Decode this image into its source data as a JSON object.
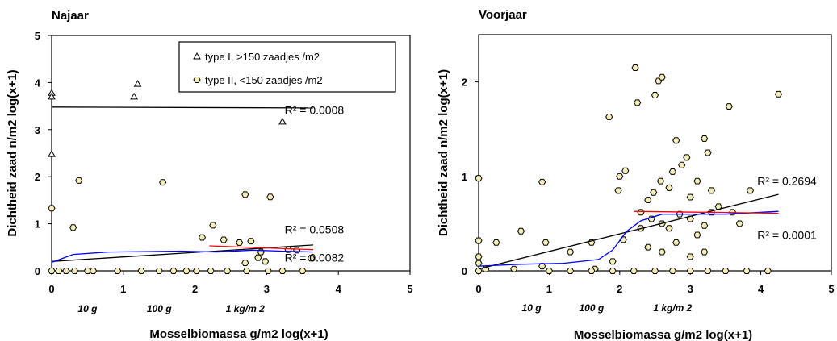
{
  "chart_data": [
    {
      "type": "scatter",
      "title": "Najaar",
      "xlabel": "Mosselbiomassa g/m2 log(x+1)",
      "ylabel": "Dichtheid zaad n/m2 log(x+1)",
      "xlim": [
        0,
        5
      ],
      "ylim": [
        0,
        5
      ],
      "x_ticks": [
        "0",
        "1",
        "2",
        "3",
        "4",
        "5"
      ],
      "y_ticks": [
        "0",
        "1",
        "2",
        "3",
        "4",
        "5"
      ],
      "mass_labels": [
        "10 g",
        "100 g",
        "1 kg/m 2"
      ],
      "legend_position": "top-right",
      "legend": [
        {
          "marker": "triangle",
          "text": "type I, >150 zaadjes /m2"
        },
        {
          "marker": "hexagon",
          "text": "type II, <150 zaadjes /m2"
        }
      ],
      "series": [
        {
          "name": "type I, >150 zaadjes /m2",
          "marker": "triangle",
          "points": [
            [
              0.0,
              3.78
            ],
            [
              0.0,
              3.7
            ],
            [
              0.0,
              2.48
            ],
            [
              1.15,
              3.7
            ],
            [
              1.2,
              3.97
            ],
            [
              3.22,
              3.17
            ]
          ]
        },
        {
          "name": "type II, <150 zaadjes /m2",
          "marker": "hexagon",
          "points": [
            [
              0.0,
              1.33
            ],
            [
              0.38,
              1.92
            ],
            [
              0.3,
              0.92
            ],
            [
              1.55,
              1.88
            ],
            [
              2.7,
              1.62
            ],
            [
              3.05,
              1.57
            ],
            [
              2.25,
              0.97
            ],
            [
              2.1,
              0.71
            ],
            [
              2.4,
              0.66
            ],
            [
              2.62,
              0.6
            ],
            [
              2.78,
              0.63
            ],
            [
              2.92,
              0.4
            ],
            [
              2.88,
              0.28
            ],
            [
              2.98,
              0.2
            ],
            [
              3.3,
              0.45
            ],
            [
              3.42,
              0.44
            ],
            [
              3.62,
              0.27
            ],
            [
              2.7,
              0.17
            ],
            [
              3.5,
              0.0
            ],
            [
              0.0,
              0.0
            ],
            [
              0.1,
              0.0
            ],
            [
              0.2,
              0.0
            ],
            [
              0.32,
              0.0
            ],
            [
              0.5,
              0.0
            ],
            [
              0.58,
              0.0
            ],
            [
              0.92,
              0.0
            ],
            [
              1.25,
              0.0
            ],
            [
              1.5,
              0.0
            ],
            [
              1.7,
              0.0
            ],
            [
              1.88,
              0.0
            ],
            [
              2.02,
              0.0
            ],
            [
              2.22,
              0.0
            ],
            [
              2.45,
              0.0
            ],
            [
              2.72,
              0.0
            ],
            [
              3.02,
              0.0
            ],
            [
              3.22,
              0.0
            ]
          ]
        }
      ],
      "trend_lines": [
        {
          "color": "#000000",
          "points": [
            [
              0.0,
              3.48
            ],
            [
              3.65,
              3.46
            ]
          ],
          "label": "R² = 0.0008",
          "label_at": [
            3.25,
            3.42
          ]
        },
        {
          "color": "#000000",
          "points": [
            [
              0.0,
              0.2
            ],
            [
              3.65,
              0.55
            ]
          ],
          "label": "R² = 0.0508",
          "label_at": [
            3.25,
            0.88
          ]
        },
        {
          "color": "#0000ff",
          "points": [
            [
              0.0,
              0.18
            ],
            [
              0.3,
              0.35
            ],
            [
              0.8,
              0.4
            ],
            [
              1.3,
              0.41
            ],
            [
              1.8,
              0.42
            ],
            [
              2.3,
              0.4
            ],
            [
              2.8,
              0.44
            ],
            [
              3.2,
              0.42
            ],
            [
              3.65,
              0.4
            ]
          ]
        },
        {
          "color": "#ff0000",
          "points": [
            [
              2.2,
              0.53
            ],
            [
              3.65,
              0.45
            ]
          ],
          "label": "R² = 0.0082",
          "label_at": [
            3.25,
            0.28
          ]
        }
      ]
    },
    {
      "type": "scatter",
      "title": "Voorjaar",
      "xlabel": "Mosselbiomassa g/m2 log(x+1)",
      "ylabel": "Dichtheid zaad n/m2 log(x+1)",
      "xlim": [
        0,
        5
      ],
      "ylim": [
        0,
        2.5
      ],
      "x_ticks": [
        "0",
        "1",
        "2",
        "3",
        "4",
        "5"
      ],
      "y_ticks": [
        "0",
        "1",
        "2"
      ],
      "mass_labels": [
        "10 g",
        "100 g",
        "1 kg/m 2"
      ],
      "series": [
        {
          "name": "type II, <150 zaadjes /m2",
          "marker": "hexagon",
          "points": [
            [
              0.0,
              0.98
            ],
            [
              0.0,
              0.32
            ],
            [
              0.0,
              0.15
            ],
            [
              0.0,
              0.08
            ],
            [
              0.0,
              0.0
            ],
            [
              0.1,
              0.02
            ],
            [
              0.25,
              0.3
            ],
            [
              0.6,
              0.42
            ],
            [
              0.9,
              0.94
            ],
            [
              0.95,
              0.3
            ],
            [
              0.5,
              0.02
            ],
            [
              0.9,
              0.05
            ],
            [
              1.3,
              0.2
            ],
            [
              1.6,
              0.3
            ],
            [
              1.85,
              1.63
            ],
            [
              1.98,
              0.85
            ],
            [
              2.0,
              1.0
            ],
            [
              2.08,
              1.06
            ],
            [
              2.05,
              0.33
            ],
            [
              1.9,
              0.1
            ],
            [
              1.65,
              0.02
            ],
            [
              2.22,
              2.15
            ],
            [
              2.25,
              1.78
            ],
            [
              2.5,
              1.86
            ],
            [
              2.55,
              2.01
            ],
            [
              2.6,
              2.05
            ],
            [
              2.3,
              0.62
            ],
            [
              2.4,
              0.75
            ],
            [
              2.48,
              0.83
            ],
            [
              2.58,
              0.95
            ],
            [
              2.7,
              0.88
            ],
            [
              2.75,
              1.05
            ],
            [
              2.8,
              1.38
            ],
            [
              2.88,
              1.12
            ],
            [
              2.95,
              1.2
            ],
            [
              3.0,
              0.78
            ],
            [
              3.1,
              0.95
            ],
            [
              3.2,
              1.4
            ],
            [
              3.25,
              1.25
            ],
            [
              3.3,
              0.85
            ],
            [
              3.4,
              0.68
            ],
            [
              3.55,
              1.74
            ],
            [
              3.6,
              0.62
            ],
            [
              3.7,
              0.5
            ],
            [
              3.85,
              0.85
            ],
            [
              4.25,
              1.87
            ],
            [
              2.3,
              0.45
            ],
            [
              2.45,
              0.55
            ],
            [
              2.6,
              0.5
            ],
            [
              2.7,
              0.45
            ],
            [
              2.85,
              0.6
            ],
            [
              3.0,
              0.55
            ],
            [
              3.1,
              0.38
            ],
            [
              3.2,
              0.48
            ],
            [
              3.3,
              0.62
            ],
            [
              2.4,
              0.25
            ],
            [
              2.6,
              0.2
            ],
            [
              2.8,
              0.3
            ],
            [
              3.0,
              0.15
            ],
            [
              3.2,
              0.2
            ],
            [
              2.2,
              0.0
            ],
            [
              2.5,
              0.0
            ],
            [
              2.75,
              0.0
            ],
            [
              3.0,
              0.0
            ],
            [
              3.25,
              0.0
            ],
            [
              3.5,
              0.0
            ],
            [
              3.8,
              0.0
            ],
            [
              4.1,
              0.0
            ],
            [
              1.0,
              0.0
            ],
            [
              1.3,
              0.0
            ],
            [
              1.6,
              0.0
            ],
            [
              1.9,
              0.0
            ]
          ]
        }
      ],
      "trend_lines": [
        {
          "color": "#000000",
          "points": [
            [
              0.0,
              0.02
            ],
            [
              4.25,
              0.81
            ]
          ],
          "label": "R² = 0.2694",
          "label_at": [
            3.95,
            0.95
          ]
        },
        {
          "color": "#0000ff",
          "points": [
            [
              0.0,
              0.05
            ],
            [
              0.6,
              0.07
            ],
            [
              1.2,
              0.08
            ],
            [
              1.7,
              0.12
            ],
            [
              1.9,
              0.22
            ],
            [
              2.1,
              0.42
            ],
            [
              2.3,
              0.53
            ],
            [
              2.6,
              0.6
            ],
            [
              3.0,
              0.6
            ],
            [
              3.5,
              0.6
            ],
            [
              4.25,
              0.63
            ]
          ]
        },
        {
          "color": "#ff0000",
          "points": [
            [
              2.2,
              0.63
            ],
            [
              4.25,
              0.61
            ]
          ],
          "label": "R² = 0.0001",
          "label_at": [
            3.95,
            0.38
          ]
        }
      ]
    }
  ]
}
